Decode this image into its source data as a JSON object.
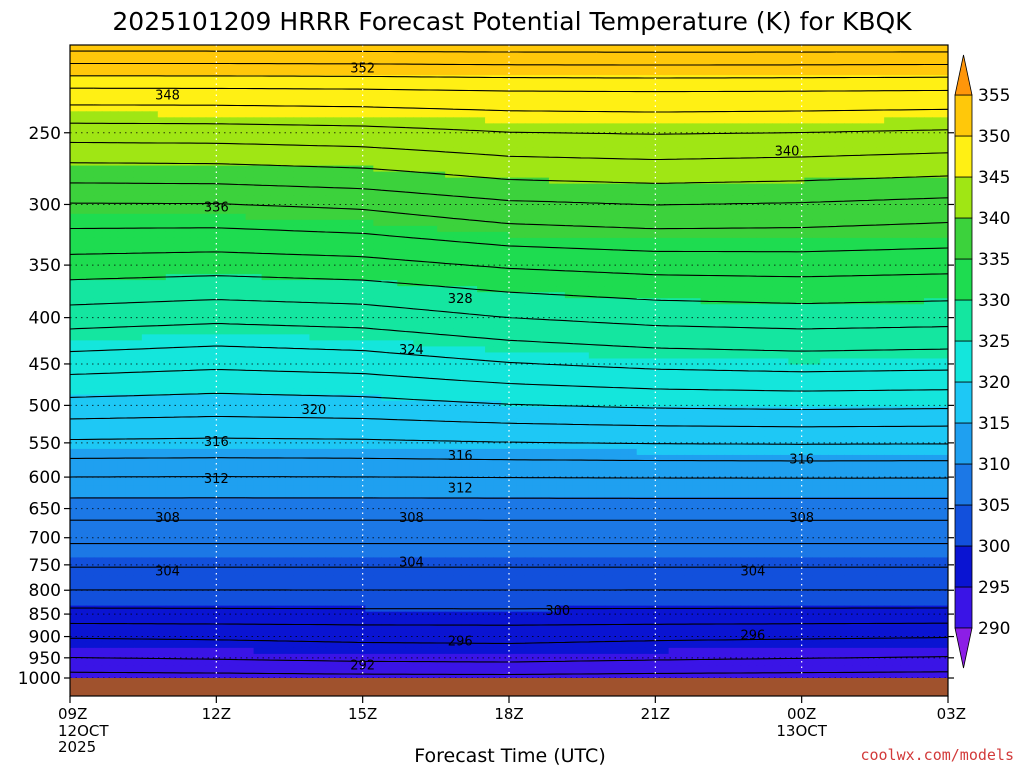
{
  "chart_data": {
    "type": "contour",
    "title": "2025101209 HRRR Forecast Potential Temperature (K) for KBQK",
    "xlabel": "Forecast Time (UTC)",
    "x_ticks": [
      {
        "hour": 0,
        "label": "09Z",
        "sub": [
          "12OCT",
          "2025"
        ]
      },
      {
        "hour": 3,
        "label": "12Z",
        "sub": []
      },
      {
        "hour": 6,
        "label": "15Z",
        "sub": []
      },
      {
        "hour": 9,
        "label": "18Z",
        "sub": []
      },
      {
        "hour": 12,
        "label": "21Z",
        "sub": []
      },
      {
        "hour": 15,
        "label": "00Z",
        "sub": [
          "13OCT"
        ]
      },
      {
        "hour": 18,
        "label": "03Z",
        "sub": []
      }
    ],
    "xlim": [
      0,
      18
    ],
    "y_ticks": [
      250,
      300,
      350,
      400,
      450,
      500,
      550,
      600,
      650,
      700,
      750,
      800,
      850,
      900,
      950,
      1000
    ],
    "ylim_hpa": [
      200,
      1000
    ],
    "y_scale": "log",
    "y_inverted": true,
    "colorbar": {
      "levels": [
        290,
        295,
        300,
        305,
        310,
        315,
        320,
        325,
        330,
        335,
        340,
        345,
        350,
        355
      ],
      "labels": [
        "290",
        "295",
        "300",
        "305",
        "310",
        "315",
        "320",
        "325",
        "330",
        "335",
        "340",
        "345",
        "350",
        "355"
      ],
      "colors": [
        "#8c1ee6",
        "#3a14e6",
        "#0a14d2",
        "#1250dc",
        "#1c78e6",
        "#1fa0f0",
        "#1ec8f5",
        "#14e6dc",
        "#14e6a0",
        "#1edc50",
        "#3cd23c",
        "#a0e614",
        "#fff014",
        "#ffc80a",
        "#ff960a"
      ]
    },
    "contour_interval": 2,
    "profile": {
      "pressure_hpa": [
        1000,
        975,
        950,
        925,
        900,
        850,
        800,
        750,
        700,
        650,
        600,
        550,
        500,
        450,
        400,
        350,
        300,
        250,
        225,
        200
      ],
      "theta_k": [
        291.0,
        292.5,
        293.8,
        294.9,
        296.0,
        299.3,
        302.0,
        304.2,
        306.5,
        309.0,
        312.0,
        315.8,
        319.6,
        323.4,
        327.5,
        331.5,
        336.0,
        343.0,
        347.5,
        355.0
      ]
    },
    "time_adjust": {
      "hour": [
        0,
        3,
        6,
        9,
        12,
        15,
        18
      ],
      "low_shift": [
        0.2,
        0.4,
        0.7,
        0.8,
        0.5,
        0.3,
        0.1
      ],
      "mid_shift": [
        -0.5,
        -1.0,
        -0.6,
        0.5,
        1.2,
        1.5,
        1.3
      ],
      "upper_shift": [
        0.0,
        0.2,
        0.6,
        1.5,
        1.7,
        1.4,
        1.0
      ]
    },
    "contour_labels": [
      {
        "text": "352",
        "hour": 6.0,
        "p": 212
      },
      {
        "text": "348",
        "hour": 2.0,
        "p": 227
      },
      {
        "text": "340",
        "hour": 14.7,
        "p": 262
      },
      {
        "text": "336",
        "hour": 3.0,
        "p": 302
      },
      {
        "text": "328",
        "hour": 8.0,
        "p": 381
      },
      {
        "text": "324",
        "hour": 7.0,
        "p": 434
      },
      {
        "text": "320",
        "hour": 5.0,
        "p": 505
      },
      {
        "text": "316",
        "hour": 3.0,
        "p": 548
      },
      {
        "text": "316",
        "hour": 8.0,
        "p": 568
      },
      {
        "text": "316",
        "hour": 15.0,
        "p": 573
      },
      {
        "text": "312",
        "hour": 3.0,
        "p": 602
      },
      {
        "text": "312",
        "hour": 8.0,
        "p": 617
      },
      {
        "text": "308",
        "hour": 2.0,
        "p": 665
      },
      {
        "text": "308",
        "hour": 7.0,
        "p": 665
      },
      {
        "text": "308",
        "hour": 15.0,
        "p": 665
      },
      {
        "text": "304",
        "hour": 2.0,
        "p": 762
      },
      {
        "text": "304",
        "hour": 7.0,
        "p": 745
      },
      {
        "text": "304",
        "hour": 14.0,
        "p": 762
      },
      {
        "text": "300",
        "hour": 10.0,
        "p": 842
      },
      {
        "text": "296",
        "hour": 8.0,
        "p": 910
      },
      {
        "text": "296",
        "hour": 14.0,
        "p": 897
      },
      {
        "text": "292",
        "hour": 6.0,
        "p": 968
      }
    ]
  },
  "watermark": "coolwx.com/models",
  "colors": {
    "ground": "#a0522d",
    "grid": "#ffffff",
    "contour": "#000000"
  }
}
